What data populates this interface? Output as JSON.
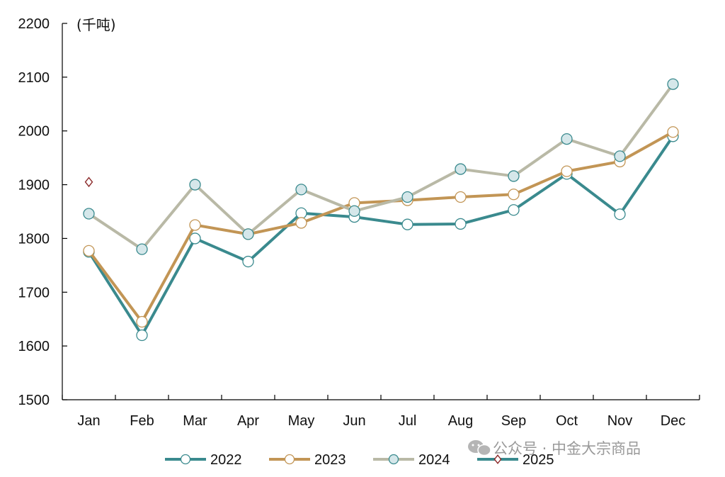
{
  "chart_data": {
    "type": "line",
    "unit_label": "(千吨)",
    "categories": [
      "Jan",
      "Feb",
      "Mar",
      "Apr",
      "May",
      "Jun",
      "Jul",
      "Aug",
      "Sep",
      "Oct",
      "Nov",
      "Dec"
    ],
    "ylim": [
      1500,
      2200
    ],
    "yticks": [
      1500,
      1600,
      1700,
      1800,
      1900,
      2000,
      2100,
      2200
    ],
    "grid": false,
    "legend_position": "bottom",
    "series": [
      {
        "name": "2022",
        "color": "#3a8a8e",
        "marker": "circle",
        "marker_fill": "#ffffff",
        "marker_stroke": "#3a8a8e",
        "values": [
          1775,
          1620,
          1800,
          1757,
          1847,
          1840,
          1826,
          1827,
          1853,
          1920,
          1845,
          1990
        ]
      },
      {
        "name": "2023",
        "color": "#c29555",
        "marker": "circle",
        "marker_fill": "#ffffff",
        "marker_stroke": "#c29555",
        "values": [
          1777,
          1645,
          1825,
          1808,
          1829,
          1866,
          1871,
          1877,
          1882,
          1925,
          1943,
          1998
        ]
      },
      {
        "name": "2024",
        "color": "#b9b9a6",
        "marker": "circle",
        "marker_fill": "#d5e7ea",
        "marker_stroke": "#3a8a8e",
        "values": [
          1846,
          1780,
          1900,
          1808,
          1891,
          1851,
          1877,
          1929,
          1916,
          1985,
          1953,
          2087
        ]
      },
      {
        "name": "2025",
        "color": "#3a8a8e",
        "marker": "diamond",
        "marker_fill": "#ffffff",
        "marker_stroke": "#8b2a2a",
        "values": [
          1905,
          null,
          null,
          null,
          null,
          null,
          null,
          null,
          null,
          null,
          null,
          null
        ]
      }
    ]
  },
  "watermark": {
    "text": "公众号 · 中金大宗商品"
  }
}
